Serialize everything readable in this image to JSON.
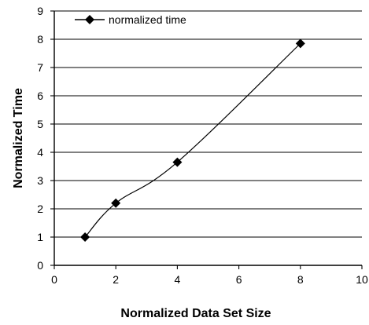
{
  "chart_data": {
    "type": "scatter",
    "title": "",
    "xlabel": "Normalized Data Set Size",
    "ylabel": "Normalized Time",
    "xlim": [
      0,
      10
    ],
    "ylim": [
      0,
      9
    ],
    "x_ticks": [
      "0",
      "2",
      "4",
      "6",
      "8",
      "10"
    ],
    "y_ticks": [
      "0",
      "1",
      "2",
      "3",
      "4",
      "5",
      "6",
      "7",
      "8",
      "9"
    ],
    "grid": "horizontal",
    "legend_position": "top-left",
    "series": [
      {
        "name": "normalized time",
        "x": [
          1,
          2,
          4,
          8
        ],
        "y": [
          1.0,
          2.2,
          3.65,
          7.85
        ],
        "marker": "diamond",
        "line": "smooth",
        "color": "#000000"
      }
    ]
  }
}
